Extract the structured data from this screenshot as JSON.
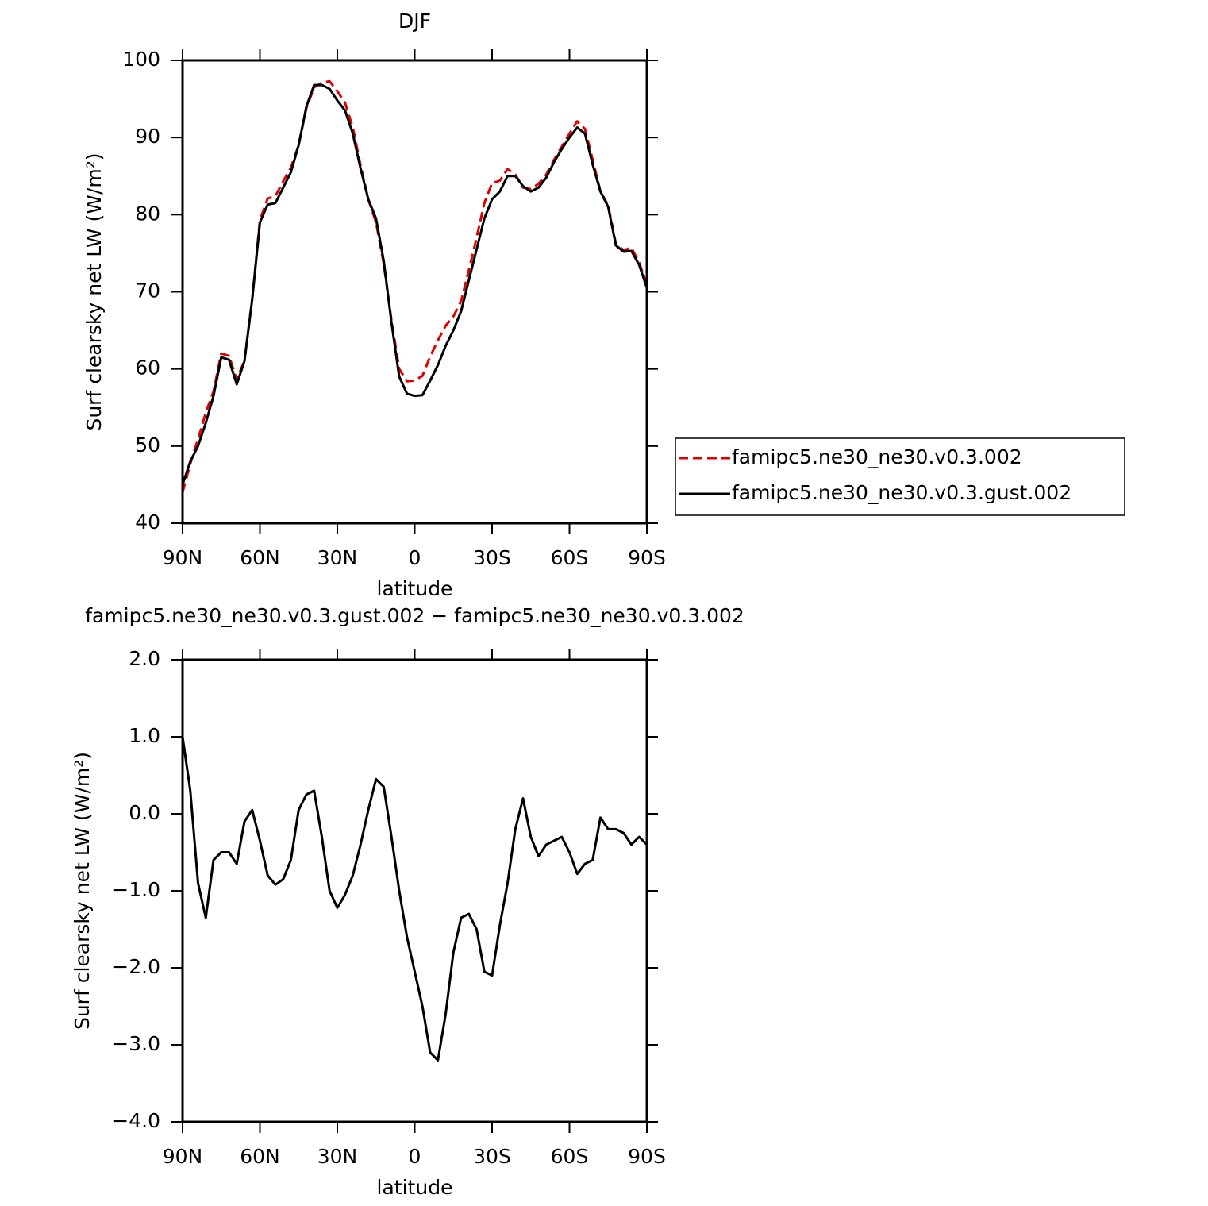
{
  "chart_data": [
    {
      "type": "line",
      "title": "DJF",
      "xlabel": "latitude",
      "ylabel": "Surf clearsky net LW (W/m²)",
      "x": [
        90,
        87,
        84,
        81,
        78,
        75,
        72,
        69,
        66,
        63,
        60,
        57,
        54,
        51,
        48,
        45,
        42,
        39,
        36,
        33,
        30,
        27,
        24,
        21,
        18,
        15,
        12,
        9,
        6,
        3,
        0,
        -3,
        -6,
        -9,
        -12,
        -15,
        -18,
        -21,
        -24,
        -27,
        -30,
        -33,
        -36,
        -39,
        -42,
        -45,
        -48,
        -51,
        -54,
        -57,
        -60,
        -63,
        -66,
        -69,
        -72,
        -75,
        -78,
        -81,
        -84,
        -87,
        -90
      ],
      "xlim": [
        90,
        -90
      ],
      "xticks": [
        {
          "value": 90,
          "label": "90N"
        },
        {
          "value": 60,
          "label": "60N"
        },
        {
          "value": 30,
          "label": "30N"
        },
        0,
        {
          "value": -30,
          "label": "30S"
        },
        {
          "value": -60,
          "label": "60S"
        },
        {
          "value": -90,
          "label": "90S"
        }
      ],
      "ylim": [
        40,
        100
      ],
      "yticks": [
        40,
        50,
        60,
        70,
        80,
        90,
        100
      ],
      "legend": "outside-right",
      "series": [
        {
          "name": "famipc5.ne30_ne30.v0.3.002",
          "color": "#e00000",
          "line_style": "dashed",
          "values": [
            44,
            47.7,
            50.9,
            54.3,
            57.1,
            62,
            61.7,
            58.6,
            61.1,
            69,
            79.3,
            82.1,
            82.4,
            84.3,
            86.1,
            89,
            93.8,
            96.5,
            97.1,
            97.3,
            96,
            94.5,
            91.3,
            86.4,
            82,
            79,
            73.6,
            66.3,
            60,
            58.4,
            58.5,
            59.1,
            61.6,
            63.7,
            65.6,
            66.8,
            68.8,
            72.8,
            77,
            81.5,
            84.1,
            84.4,
            85.9,
            85.2,
            83.5,
            83.3,
            84,
            85.2,
            87.1,
            88.8,
            90.5,
            92.1,
            91.1,
            87.1,
            83,
            81.2,
            76.2,
            75.4,
            75.7,
            73.8,
            70.9
          ]
        },
        {
          "name": "famipc5.ne30_ne30.v0.3.gust.002",
          "color": "#000000",
          "line_style": "solid",
          "values": [
            45,
            48,
            50,
            53,
            56.5,
            61.5,
            61.2,
            58,
            61,
            69,
            79,
            81.3,
            81.5,
            83.5,
            85.5,
            89,
            94,
            96.8,
            96.8,
            96.3,
            94.8,
            93.5,
            90.5,
            86,
            82,
            79.5,
            74,
            66,
            59,
            56.8,
            56.5,
            56.6,
            58.5,
            60.5,
            63,
            65,
            67.5,
            71.5,
            75.5,
            79.5,
            82,
            83,
            85,
            85,
            83.7,
            83,
            83.5,
            84.8,
            86.8,
            88.5,
            90,
            91.3,
            90.5,
            86.5,
            83,
            81,
            76,
            75.2,
            75.3,
            73.5,
            70.5
          ]
        }
      ]
    },
    {
      "type": "line",
      "title": "famipc5.ne30_ne30.v0.3.gust.002 − famipc5.ne30_ne30.v0.3.002",
      "xlabel": "latitude",
      "ylabel": "Surf clearsky net LW (W/m²)",
      "x": [
        90,
        87,
        84,
        81,
        78,
        75,
        72,
        69,
        66,
        63,
        60,
        57,
        54,
        51,
        48,
        45,
        42,
        39,
        36,
        33,
        30,
        27,
        24,
        21,
        18,
        15,
        12,
        9,
        6,
        3,
        0,
        -3,
        -6,
        -9,
        -12,
        -15,
        -18,
        -21,
        -24,
        -27,
        -30,
        -33,
        -36,
        -39,
        -42,
        -45,
        -48,
        -51,
        -54,
        -57,
        -60,
        -63,
        -66,
        -69,
        -72,
        -75,
        -78,
        -81,
        -84,
        -87,
        -90
      ],
      "xlim": [
        90,
        -90
      ],
      "xticks": [
        {
          "value": 90,
          "label": "90N"
        },
        {
          "value": 60,
          "label": "60N"
        },
        {
          "value": 30,
          "label": "30N"
        },
        0,
        {
          "value": -30,
          "label": "30S"
        },
        {
          "value": -60,
          "label": "60S"
        },
        {
          "value": -90,
          "label": "90S"
        }
      ],
      "ylim": [
        -4,
        2
      ],
      "yticks": [
        {
          "value": -4,
          "label": "−4.0"
        },
        {
          "value": -3,
          "label": "−3.0"
        },
        {
          "value": -2,
          "label": "−2.0"
        },
        {
          "value": -1,
          "label": "−1.0"
        },
        {
          "value": 0,
          "label": "0.0"
        },
        {
          "value": 1,
          "label": "1.0"
        },
        {
          "value": 2,
          "label": "2.0"
        }
      ],
      "color": "#000000",
      "values": [
        1.0,
        0.3,
        -0.9,
        -1.35,
        -0.6,
        -0.5,
        -0.5,
        -0.65,
        -0.1,
        0.05,
        -0.35,
        -0.8,
        -0.92,
        -0.85,
        -0.6,
        0.05,
        0.25,
        0.3,
        -0.3,
        -1.0,
        -1.22,
        -1.05,
        -0.8,
        -0.4,
        0.05,
        0.45,
        0.35,
        -0.3,
        -1.0,
        -1.6,
        -2.05,
        -2.5,
        -3.1,
        -3.2,
        -2.6,
        -1.8,
        -1.35,
        -1.3,
        -1.5,
        -2.05,
        -2.1,
        -1.45,
        -0.9,
        -0.2,
        0.2,
        -0.3,
        -0.55,
        -0.4,
        -0.35,
        -0.3,
        -0.5,
        -0.78,
        -0.65,
        -0.6,
        -0.05,
        -0.2,
        -0.2,
        -0.25,
        -0.4,
        -0.3,
        -0.4
      ]
    }
  ]
}
